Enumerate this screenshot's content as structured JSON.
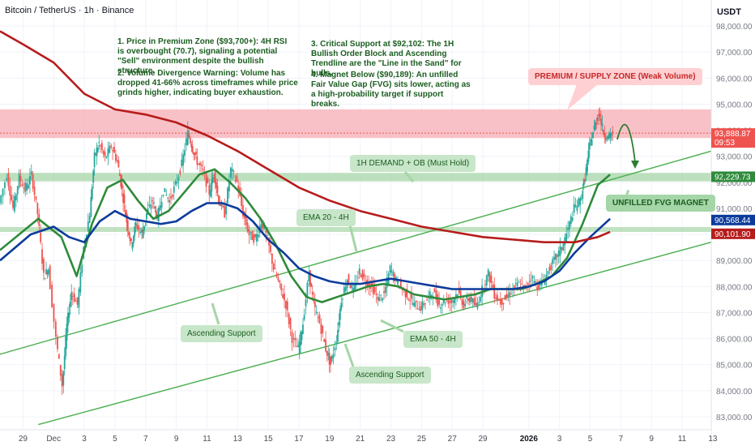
{
  "header": {
    "title": "Bitcoin / TetherUS · 1h · Binance",
    "currency": "USDT"
  },
  "colors": {
    "candle_up": "#26a69a",
    "candle_down": "#ef5350",
    "ema20": "#2e8b3a",
    "ema50": "#0d3b9c",
    "ema200": "#b71c1c",
    "trend": "#4caf50",
    "premium_zone": "#f7b6bd",
    "demand_zone": "#a5d6a7"
  },
  "notes": {
    "n1": "1. Price in Premium Zone ($93,700+): 4H RSI is overbought (70.7), signaling a potential \"Sell\" environment despite the bullish structure.",
    "n2": "2. Volume Divergence Warning: Volume has dropped 41-66% across timeframes while price grinds higher, indicating buyer exhaustion.",
    "n3": "3. Critical Support at $92,102: The 1H Bullish Order Block and Ascending Trendline are the \"Line in the Sand\" for bulls.",
    "n4": "4. Magnet Below ($90,189): An unfilled Fair Value Gap (FVG) sits lower, acting as a high-probability target if support breaks."
  },
  "labels": {
    "premium": "PREMIUM / SUPPLY ZONE (Weak Volume)",
    "demand": "1H DEMAND + OB (Must Hold)",
    "fvg": "UNFILLED FVG MAGNET",
    "ema20": "EMA 20 - 4H",
    "ema50": "EMA 50 - 4H",
    "asc1": "Ascending Support",
    "asc2": "Ascending Support"
  },
  "chart_data": {
    "type": "candlestick",
    "title": "Bitcoin / TetherUS · 1h · Binance",
    "ylim": [
      82500,
      99000
    ],
    "y_ticks": [
      83000,
      84000,
      85000,
      86000,
      87000,
      88000,
      89000,
      90000,
      91000,
      92000,
      93000,
      94000,
      95000,
      96000,
      97000,
      98000
    ],
    "y_tick_labels": [
      "83,000.00",
      "84,000.00",
      "85,000.00",
      "86,000.00",
      "87,000.00",
      "88,000.00",
      "89,000.00",
      "90,000.00",
      "91,000.00",
      "92,000.00",
      "93,000.00",
      "94,000.00",
      "95,000.00",
      "96,000.00",
      "97,000.00",
      "98,000.00"
    ],
    "x_tick_labels": [
      "29",
      "Dec",
      "3",
      "5",
      "7",
      "9",
      "11",
      "13",
      "15",
      "17",
      "19",
      "21",
      "23",
      "25",
      "27",
      "29",
      "2026",
      "3",
      "5",
      "7",
      "9",
      "11",
      "13"
    ],
    "x_tick_days": [
      -2,
      0,
      2,
      4,
      6,
      8,
      10,
      12,
      14,
      16,
      18,
      20,
      22,
      24,
      26,
      28,
      31,
      33,
      35,
      37,
      39,
      41,
      43
    ],
    "x_range_days": [
      -3.5,
      42.9
    ],
    "price_tags": [
      {
        "value": 93888.87,
        "label": "93,888.87",
        "sub": "09:53",
        "color": "#ef5350"
      },
      {
        "value": 92229.73,
        "label": "92,229.73",
        "color": "#2e8b3a"
      },
      {
        "value": 90568.44,
        "label": "90,568.44",
        "color": "#0d3b9c"
      },
      {
        "value": 90101.9,
        "label": "90,101.90",
        "color": "#b71c1c"
      }
    ],
    "premium_zone": [
      93700,
      94800
    ],
    "demand_zone": [
      92102,
      92300
    ],
    "fvg_level": 90189,
    "price_path": [
      [
        -3.5,
        91200
      ],
      [
        -3,
        92300
      ],
      [
        -2.6,
        91000
      ],
      [
        -2.2,
        92200
      ],
      [
        -1.8,
        91700
      ],
      [
        -1.4,
        92300
      ],
      [
        -1,
        90800
      ],
      [
        -0.6,
        88400
      ],
      [
        -0.3,
        88700
      ],
      [
        0.2,
        86000
      ],
      [
        0.6,
        84200
      ],
      [
        0.9,
        86500
      ],
      [
        1.2,
        87800
      ],
      [
        1.6,
        87300
      ],
      [
        2,
        89500
      ],
      [
        2.4,
        90800
      ],
      [
        2.7,
        93000
      ],
      [
        3,
        93500
      ],
      [
        3.4,
        92900
      ],
      [
        3.8,
        93400
      ],
      [
        4.2,
        92800
      ],
      [
        4.5,
        91700
      ],
      [
        4.8,
        90500
      ],
      [
        5.1,
        89600
      ],
      [
        5.4,
        90400
      ],
      [
        5.8,
        90000
      ],
      [
        6.1,
        90800
      ],
      [
        6.5,
        91300
      ],
      [
        6.8,
        90600
      ],
      [
        7.2,
        91700
      ],
      [
        7.6,
        91300
      ],
      [
        8.0,
        91900
      ],
      [
        8.4,
        92700
      ],
      [
        8.8,
        93900
      ],
      [
        9.1,
        93300
      ],
      [
        9.4,
        92800
      ],
      [
        9.8,
        92400
      ],
      [
        10.2,
        91600
      ],
      [
        10.5,
        92400
      ],
      [
        10.8,
        91300
      ],
      [
        11.2,
        90800
      ],
      [
        11.6,
        92500
      ],
      [
        12.0,
        92000
      ],
      [
        12.4,
        90800
      ],
      [
        12.8,
        90000
      ],
      [
        13.2,
        89800
      ],
      [
        13.6,
        90500
      ],
      [
        14.0,
        89800
      ],
      [
        14.4,
        88700
      ],
      [
        14.8,
        88000
      ],
      [
        15.2,
        87300
      ],
      [
        15.6,
        86000
      ],
      [
        16.0,
        85600
      ],
      [
        16.3,
        86600
      ],
      [
        16.7,
        88500
      ],
      [
        17.0,
        87300
      ],
      [
        17.4,
        86600
      ],
      [
        17.8,
        85600
      ],
      [
        18.1,
        85000
      ],
      [
        18.5,
        86000
      ],
      [
        18.8,
        87500
      ],
      [
        19.2,
        88300
      ],
      [
        19.6,
        87800
      ],
      [
        20.0,
        88600
      ],
      [
        20.4,
        88200
      ],
      [
        20.8,
        88000
      ],
      [
        21.2,
        87500
      ],
      [
        21.6,
        87700
      ],
      [
        22.0,
        88700
      ],
      [
        22.4,
        88200
      ],
      [
        22.8,
        87900
      ],
      [
        23.2,
        87600
      ],
      [
        23.6,
        87300
      ],
      [
        24.0,
        87200
      ],
      [
        24.4,
        87500
      ],
      [
        24.8,
        87800
      ],
      [
        25.2,
        87300
      ],
      [
        25.6,
        87500
      ],
      [
        26.0,
        87400
      ],
      [
        26.4,
        87800
      ],
      [
        26.8,
        87300
      ],
      [
        27.2,
        87600
      ],
      [
        27.6,
        87200
      ],
      [
        28.0,
        87900
      ],
      [
        28.4,
        88500
      ],
      [
        28.8,
        87700
      ],
      [
        29.2,
        87400
      ],
      [
        29.6,
        87600
      ],
      [
        30.0,
        87900
      ],
      [
        30.4,
        88100
      ],
      [
        30.8,
        87900
      ],
      [
        31.2,
        88400
      ],
      [
        31.6,
        88000
      ],
      [
        32.0,
        88200
      ],
      [
        32.4,
        88700
      ],
      [
        32.8,
        89100
      ],
      [
        33.2,
        89500
      ],
      [
        33.6,
        90200
      ],
      [
        34.0,
        91000
      ],
      [
        34.4,
        91300
      ],
      [
        34.7,
        92200
      ],
      [
        35.0,
        93400
      ],
      [
        35.3,
        94100
      ],
      [
        35.6,
        94700
      ],
      [
        35.9,
        93900
      ],
      [
        36.2,
        93700
      ],
      [
        36.5,
        93900
      ]
    ],
    "series": [
      {
        "name": "EMA 20 - 4H",
        "values": [
          [
            -3.5,
            89400
          ],
          [
            -1,
            90600
          ],
          [
            0.5,
            89900
          ],
          [
            1.5,
            88400
          ],
          [
            2.5,
            90400
          ],
          [
            3.5,
            91800
          ],
          [
            4.5,
            92100
          ],
          [
            5.5,
            91300
          ],
          [
            6.5,
            90600
          ],
          [
            7.5,
            90900
          ],
          [
            8.5,
            91600
          ],
          [
            9.5,
            92300
          ],
          [
            10.5,
            92500
          ],
          [
            11.5,
            92000
          ],
          [
            12.5,
            91400
          ],
          [
            13.5,
            90600
          ],
          [
            14.5,
            89600
          ],
          [
            15.5,
            88400
          ],
          [
            16.5,
            87600
          ],
          [
            17.5,
            87400
          ],
          [
            18.5,
            87600
          ],
          [
            19.5,
            87800
          ],
          [
            20.5,
            88000
          ],
          [
            21.5,
            88100
          ],
          [
            22.5,
            88000
          ],
          [
            23.5,
            87700
          ],
          [
            24.5,
            87600
          ],
          [
            25.5,
            87500
          ],
          [
            26.5,
            87600
          ],
          [
            27.5,
            87700
          ],
          [
            28.5,
            87900
          ],
          [
            29.5,
            87900
          ],
          [
            30.5,
            87900
          ],
          [
            31.5,
            88100
          ],
          [
            32.5,
            88400
          ],
          [
            33.5,
            89100
          ],
          [
            34.5,
            90400
          ],
          [
            35.5,
            91900
          ],
          [
            36.3,
            92300
          ]
        ]
      },
      {
        "name": "EMA 50 - 4H",
        "values": [
          [
            -3.5,
            89000
          ],
          [
            -1.5,
            90000
          ],
          [
            0,
            90300
          ],
          [
            1,
            89900
          ],
          [
            2,
            89700
          ],
          [
            3,
            90500
          ],
          [
            4,
            90900
          ],
          [
            5,
            90600
          ],
          [
            6,
            90500
          ],
          [
            7,
            90400
          ],
          [
            8,
            90500
          ],
          [
            9,
            90900
          ],
          [
            10,
            91200
          ],
          [
            11,
            91200
          ],
          [
            12,
            91000
          ],
          [
            13,
            90500
          ],
          [
            14,
            89800
          ],
          [
            15,
            89300
          ],
          [
            16,
            88700
          ],
          [
            17,
            88400
          ],
          [
            18,
            88200
          ],
          [
            19,
            88100
          ],
          [
            20,
            88100
          ],
          [
            21,
            88200
          ],
          [
            22,
            88300
          ],
          [
            23,
            88200
          ],
          [
            24,
            88100
          ],
          [
            25,
            88000
          ],
          [
            26,
            87900
          ],
          [
            27,
            87900
          ],
          [
            28,
            87900
          ],
          [
            29,
            87900
          ],
          [
            30,
            87900
          ],
          [
            31,
            88000
          ],
          [
            32,
            88200
          ],
          [
            33,
            88600
          ],
          [
            34,
            89300
          ],
          [
            35,
            89900
          ],
          [
            36.3,
            90600
          ]
        ]
      },
      {
        "name": "EMA 200",
        "values": [
          [
            -3.5,
            97800
          ],
          [
            -2,
            97300
          ],
          [
            0,
            96600
          ],
          [
            2,
            95400
          ],
          [
            4,
            94800
          ],
          [
            6,
            94600
          ],
          [
            8,
            94300
          ],
          [
            10,
            93800
          ],
          [
            12,
            93200
          ],
          [
            14,
            92500
          ],
          [
            16,
            91800
          ],
          [
            18,
            91300
          ],
          [
            20,
            90900
          ],
          [
            22,
            90600
          ],
          [
            24,
            90300
          ],
          [
            26,
            90100
          ],
          [
            28,
            89900
          ],
          [
            30,
            89800
          ],
          [
            32,
            89700
          ],
          [
            34,
            89700
          ],
          [
            35.5,
            89900
          ],
          [
            36.3,
            90100
          ]
        ]
      }
    ]
  }
}
